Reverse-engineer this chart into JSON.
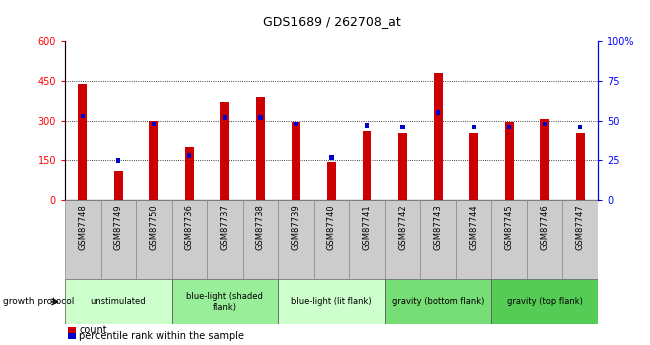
{
  "title": "GDS1689 / 262708_at",
  "samples": [
    "GSM87748",
    "GSM87749",
    "GSM87750",
    "GSM87736",
    "GSM87737",
    "GSM87738",
    "GSM87739",
    "GSM87740",
    "GSM87741",
    "GSM87742",
    "GSM87743",
    "GSM87744",
    "GSM87745",
    "GSM87746",
    "GSM87747"
  ],
  "counts": [
    440,
    110,
    300,
    200,
    370,
    390,
    295,
    145,
    260,
    255,
    480,
    255,
    295,
    305,
    255
  ],
  "percentiles": [
    53,
    25,
    48,
    28,
    52,
    52,
    48,
    27,
    47,
    46,
    55,
    46,
    46,
    48,
    46
  ],
  "groups": [
    {
      "label": "unstimulated",
      "start": 0,
      "end": 3,
      "color": "#ccffcc"
    },
    {
      "label": "blue-light (shaded\nflank)",
      "start": 3,
      "end": 6,
      "color": "#99ee99"
    },
    {
      "label": "blue-light (lit flank)",
      "start": 6,
      "end": 9,
      "color": "#ccffcc"
    },
    {
      "label": "gravity (bottom flank)",
      "start": 9,
      "end": 12,
      "color": "#77dd77"
    },
    {
      "label": "gravity (top flank)",
      "start": 12,
      "end": 15,
      "color": "#55cc55"
    }
  ],
  "bar_color_red": "#cc0000",
  "bar_color_blue": "#0000cc",
  "ylim_left": [
    0,
    600
  ],
  "ylim_right": [
    0,
    100
  ],
  "yticks_left": [
    0,
    150,
    300,
    450,
    600
  ],
  "yticks_right": [
    0,
    25,
    50,
    75,
    100
  ],
  "ytick_labels_right": [
    "0",
    "25",
    "50",
    "75",
    "100%"
  ],
  "growth_protocol_label": "growth protocol",
  "legend_count": "count",
  "legend_percentile": "percentile rank within the sample",
  "sample_bg_color": "#cccccc",
  "plot_bg_color": "#ffffff"
}
